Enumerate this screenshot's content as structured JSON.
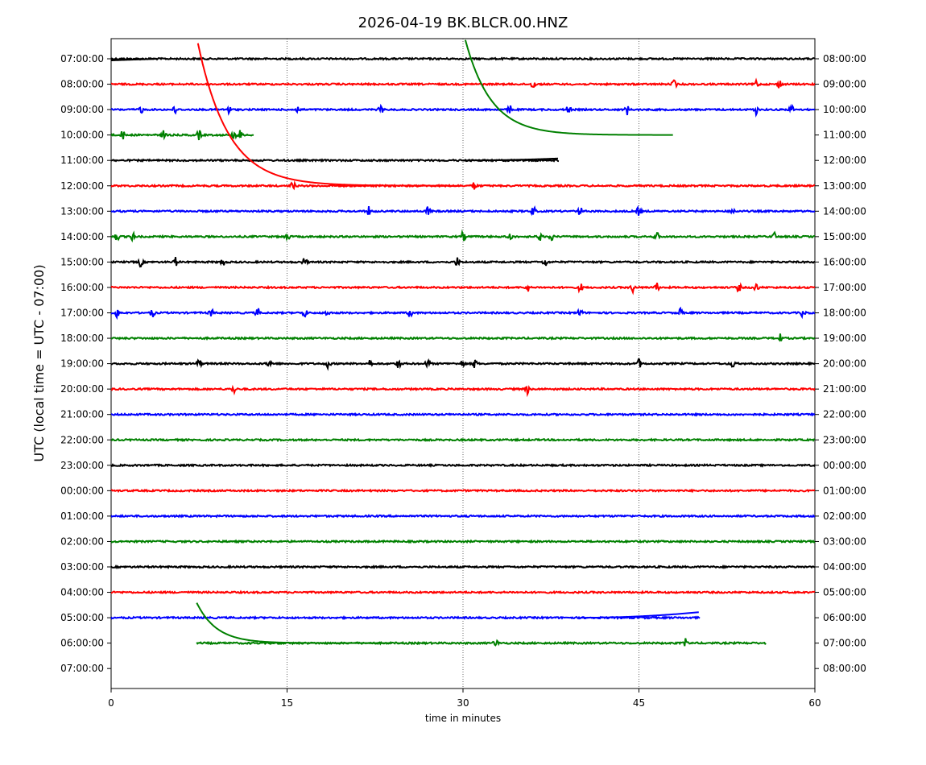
{
  "chart_data": {
    "type": "line",
    "title": "2026-04-19 BK.BLCR.00.HNZ",
    "xlabel": "time in minutes",
    "ylabel": "UTC (local time = UTC - 07:00)",
    "xlim": [
      0,
      60
    ],
    "x_ticks": [
      0,
      15,
      30,
      45,
      60
    ],
    "x_tick_labels": [
      "0",
      "15",
      "30",
      "45",
      "60"
    ],
    "x_grid": [
      15,
      30,
      45
    ],
    "left_tick_labels": [
      "07:00:00",
      "08:00:00",
      "09:00:00",
      "10:00:00",
      "11:00:00",
      "12:00:00",
      "13:00:00",
      "14:00:00",
      "15:00:00",
      "16:00:00",
      "17:00:00",
      "18:00:00",
      "19:00:00",
      "20:00:00",
      "21:00:00",
      "22:00:00",
      "23:00:00",
      "00:00:00",
      "01:00:00",
      "02:00:00",
      "03:00:00",
      "04:00:00",
      "05:00:00",
      "06:00:00",
      "07:00:00"
    ],
    "right_tick_labels": [
      "08:00:00",
      "09:00:00",
      "10:00:00",
      "11:00:00",
      "12:00:00",
      "13:00:00",
      "14:00:00",
      "15:00:00",
      "16:00:00",
      "17:00:00",
      "18:00:00",
      "19:00:00",
      "20:00:00",
      "21:00:00",
      "22:00:00",
      "23:00:00",
      "00:00:00",
      "01:00:00",
      "02:00:00",
      "03:00:00",
      "04:00:00",
      "05:00:00",
      "06:00:00",
      "07:00:00",
      "08:00:00"
    ],
    "colors": [
      "#000000",
      "#ff0000",
      "#0000ff",
      "#008000"
    ],
    "series": [
      {
        "name": "07:00:00",
        "row": 0,
        "color": "#000000",
        "start": 0,
        "end": 60,
        "noise": 0.05,
        "offset": 0,
        "events": []
      },
      {
        "name": "08:00:00",
        "row": 1,
        "color": "#ff0000",
        "start": 0,
        "end": 60,
        "noise": 0.05,
        "offset": 0,
        "events": [
          36,
          48,
          55,
          57
        ]
      },
      {
        "name": "09:00:00",
        "row": 2,
        "color": "#0000ff",
        "start": 0,
        "end": 60,
        "noise": 0.06,
        "offset": 0,
        "events": [
          2.5,
          5.5,
          10,
          16,
          23,
          34,
          39,
          44,
          55,
          58
        ]
      },
      {
        "name": "10:00:00",
        "row": 3,
        "color": "#008000",
        "start": 0,
        "end": 12.2,
        "noise": 0.06,
        "offset": 0,
        "events": [
          1,
          4.5,
          7.5,
          10.5,
          11
        ]
      },
      {
        "name": "11:00:00",
        "row": 4,
        "color": "#000000",
        "start": 0,
        "end": 38.2,
        "noise": 0.04,
        "offset": 0,
        "events": []
      },
      {
        "name": "12:00:00",
        "row": 5,
        "color": "#ff0000",
        "start": 0,
        "end": 60,
        "noise": 0.05,
        "offset": 0,
        "events": [
          15.5,
          31
        ]
      },
      {
        "name": "13:00:00",
        "row": 6,
        "color": "#0000ff",
        "start": 0,
        "end": 60,
        "noise": 0.05,
        "offset": 0,
        "events": [
          22,
          27,
          36,
          40,
          45,
          53
        ]
      },
      {
        "name": "14:00:00",
        "row": 7,
        "color": "#008000",
        "start": 0,
        "end": 60,
        "noise": 0.07,
        "offset": 0,
        "events": [
          0.5,
          1.8,
          15,
          30,
          34,
          36.5,
          37.5,
          46.5,
          56.5
        ]
      },
      {
        "name": "15:00:00",
        "row": 8,
        "color": "#000000",
        "start": 0,
        "end": 60,
        "noise": 0.06,
        "offset": 0,
        "events": [
          2.5,
          5.5,
          9.5,
          16.5,
          29.5,
          37
        ]
      },
      {
        "name": "16:00:00",
        "row": 9,
        "color": "#ff0000",
        "start": 0,
        "end": 60,
        "noise": 0.05,
        "offset": 0,
        "events": [
          35.5,
          40,
          44.5,
          46.5,
          53.5,
          55
        ]
      },
      {
        "name": "17:00:00",
        "row": 10,
        "color": "#0000ff",
        "start": 0,
        "end": 60,
        "noise": 0.06,
        "offset": 0,
        "events": [
          0.5,
          3.5,
          8.5,
          12.5,
          16.5,
          18.5,
          25.5,
          40,
          48.5,
          59
        ]
      },
      {
        "name": "18:00:00",
        "row": 11,
        "color": "#008000",
        "start": 0,
        "end": 60,
        "noise": 0.05,
        "offset": 0,
        "events": [
          57
        ]
      },
      {
        "name": "19:00:00",
        "row": 12,
        "color": "#000000",
        "start": 0,
        "end": 60,
        "noise": 0.05,
        "offset": 0,
        "events": [
          7.5,
          13.5,
          18.5,
          22,
          24.5,
          27,
          30,
          31,
          45,
          53
        ]
      },
      {
        "name": "20:00:00",
        "row": 13,
        "color": "#ff0000",
        "start": 0,
        "end": 60,
        "noise": 0.05,
        "offset": 0,
        "events": [
          10.5,
          35.5
        ]
      },
      {
        "name": "21:00:00",
        "row": 14,
        "color": "#0000ff",
        "start": 0,
        "end": 60,
        "noise": 0.04,
        "offset": 0,
        "events": []
      },
      {
        "name": "22:00:00",
        "row": 15,
        "color": "#008000",
        "start": 0,
        "end": 60,
        "noise": 0.04,
        "offset": 0,
        "events": []
      },
      {
        "name": "23:00:00",
        "row": 16,
        "color": "#000000",
        "start": 0,
        "end": 60,
        "noise": 0.04,
        "offset": 0,
        "events": []
      },
      {
        "name": "00:00:00",
        "row": 17,
        "color": "#ff0000",
        "start": 0,
        "end": 60,
        "noise": 0.04,
        "offset": 0,
        "events": []
      },
      {
        "name": "01:00:00",
        "row": 18,
        "color": "#0000ff",
        "start": 0,
        "end": 60,
        "noise": 0.04,
        "offset": 0,
        "events": []
      },
      {
        "name": "02:00:00",
        "row": 19,
        "color": "#008000",
        "start": 0,
        "end": 60,
        "noise": 0.04,
        "offset": 0,
        "events": []
      },
      {
        "name": "03:00:00",
        "row": 20,
        "color": "#000000",
        "start": 0,
        "end": 60,
        "noise": 0.04,
        "offset": 0,
        "events": []
      },
      {
        "name": "04:00:00",
        "row": 21,
        "color": "#ff0000",
        "start": 0,
        "end": 60,
        "noise": 0.04,
        "offset": 0,
        "events": []
      },
      {
        "name": "05:00:00",
        "row": 22,
        "color": "#0000ff",
        "start": 0,
        "end": 50.2,
        "noise": 0.04,
        "offset": 0,
        "events": []
      },
      {
        "name": "06:00:00",
        "row": 23,
        "color": "#008000",
        "start": 7.3,
        "end": 55.9,
        "noise": 0.05,
        "offset": 0,
        "events": [
          32.8,
          49
        ]
      }
    ]
  }
}
